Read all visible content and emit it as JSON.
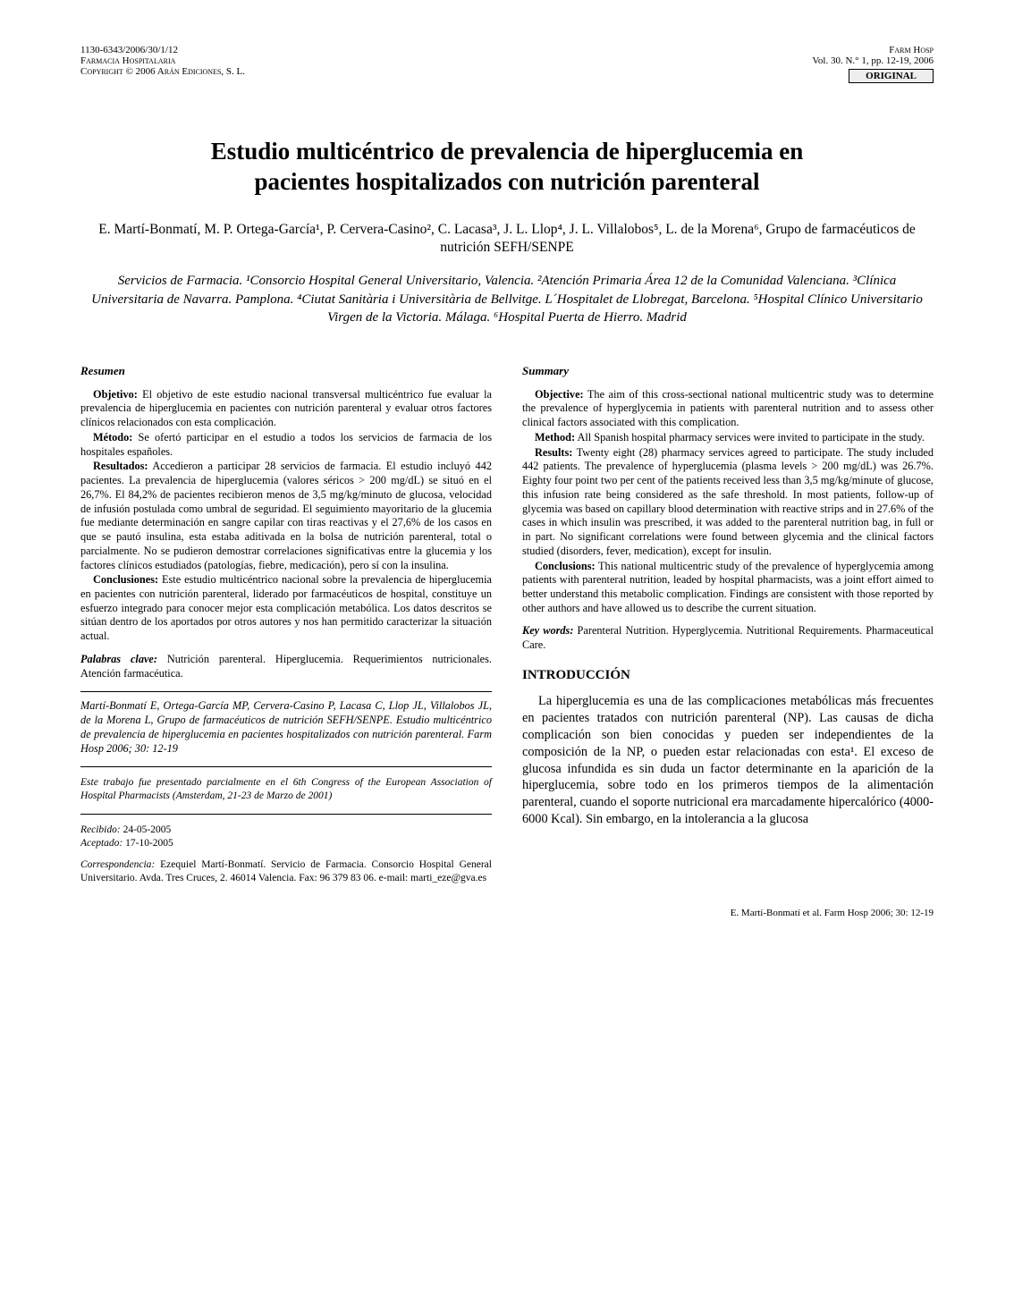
{
  "header": {
    "left_line1": "1130-6343/2006/30/1/12",
    "left_line2": "Farmacia Hospitalaria",
    "left_line3": "Copyright © 2006 Arán Ediciones, S. L.",
    "right_line1": "Farm Hosp",
    "right_line2": "Vol. 30. N.° 1, pp. 12-19, 2006",
    "badge": "ORIGINAL"
  },
  "title_line1": "Estudio multicéntrico de prevalencia de hiperglucemia en",
  "title_line2": "pacientes hospitalizados con nutrición parenteral",
  "authors": "E. Martí-Bonmatí, M. P. Ortega-García¹, P. Cervera-Casino², C. Lacasa³, J. L. Llop⁴, J. L. Villalobos⁵, L. de la Morena⁶, Grupo de farmacéuticos de nutrición SEFH/SENPE",
  "affiliations": "Servicios de Farmacia. ¹Consorcio Hospital General Universitario, Valencia. ²Atención Primaria Área 12 de la Comunidad Valenciana. ³Clínica Universitaria de Navarra. Pamplona. ⁴Ciutat Sanitària i Universitària de Bellvitge. L´Hospitalet de Llobregat, Barcelona. ⁵Hospital Clínico Universitario Virgen de la Victoria. Málaga. ⁶Hospital Puerta de Hierro. Madrid",
  "resumen": {
    "heading": "Resumen",
    "objetivo_label": "Objetivo:",
    "objetivo": " El objetivo de este estudio nacional transversal multicéntrico fue evaluar la prevalencia de hiperglucemia en pacientes con nutrición parenteral y evaluar otros factores clínicos relacionados con esta complicación.",
    "metodo_label": "Método:",
    "metodo": " Se ofertó participar en el estudio a todos los servicios de farmacia de los hospitales españoles.",
    "resultados_label": "Resultados:",
    "resultados": " Accedieron a participar 28 servicios de farmacia. El estudio incluyó 442 pacientes. La prevalencia de hiperglucemia (valores séricos > 200 mg/dL) se situó en el 26,7%. El 84,2% de pacientes recibieron menos de 3,5 mg/kg/minuto de glucosa, velocidad de infusión postulada como umbral de seguridad. El seguimiento mayoritario de la glucemia fue mediante determinación en sangre capilar con tiras reactivas y el 27,6% de los casos en que se pautó insulina, esta estaba aditivada en la bolsa de nutrición parenteral, total o parcialmente. No se pudieron demostrar correlaciones significativas entre la glucemia y los factores clínicos estudiados (patologías, fiebre, medicación), pero sí con la insulina.",
    "conclusiones_label": "Conclusiones:",
    "conclusiones": " Este estudio multicéntrico nacional sobre la prevalencia de hiperglucemia en pacientes con nutrición parenteral, liderado por farmacéuticos de hospital, constituye un esfuerzo integrado para conocer mejor esta complicación metabólica. Los datos descritos se sitúan dentro de los aportados por otros autores y nos han permitido caracterizar la situación actual.",
    "keywords_label": "Palabras clave:",
    "keywords": " Nutrición parenteral. Hiperglucemia. Requerimientos nutricionales. Atención farmacéutica."
  },
  "summary": {
    "heading": "Summary",
    "objective_label": "Objective:",
    "objective": " The aim of this cross-sectional national multicentric study was to determine the prevalence of hyperglycemia in patients with parenteral nutrition and to assess other clinical factors associated with this complication.",
    "method_label": "Method:",
    "method": " All Spanish hospital pharmacy services were invited to participate in the study.",
    "results_label": "Results:",
    "results": " Twenty eight (28) pharmacy services agreed to participate. The study included 442 patients. The prevalence of hyperglucemia (plasma levels > 200 mg/dL) was 26.7%. Eighty four point two per cent of the patients received less than 3,5 mg/kg/minute of glucose, this infusion rate being considered as the safe threshold. In most patients, follow-up of glycemia was based on capillary blood determination with reactive strips and in 27.6% of the cases in which insulin was prescribed, it was added to the parenteral nutrition bag, in full or in part. No significant correlations were found between glycemia and the clinical factors studied (disorders, fever, medication), except for insulin.",
    "conclusions_label": "Conclusions:",
    "conclusions": " This national multicentric study of the prevalence of hyperglycemia among patients with parenteral nutrition, leaded by hospital pharmacists, was a joint effort aimed to better understand this metabolic complication. Findings are consistent with those reported by other authors and have allowed us to describe the current situation.",
    "keywords_label": "Key words:",
    "keywords": " Parenteral Nutrition. Hyperglycemia. Nutritional Requirements. Pharmaceutical Care."
  },
  "citation": "Martí-Bonmatí E, Ortega-García MP, Cervera-Casino P, Lacasa C, Llop JL, Villalobos JL, de la Morena L, Grupo de farmacéuticos de nutrición SEFH/SENPE. Estudio multicéntrico de prevalencia de hiperglucemia en pacientes hospitalizados con nutrición parenteral. Farm Hosp 2006; 30: 12-19",
  "footnote": "Este trabajo fue presentado parcialmente en el 6th Congress of the European Association of Hospital Pharmacists (Amsterdam, 21-23 de Marzo de 2001)",
  "dates": {
    "recibido_label": "Recibido:",
    "recibido": " 24-05-2005",
    "aceptado_label": "Aceptado:",
    "aceptado": " 17-10-2005"
  },
  "correspondence": {
    "label": "Correspondencia:",
    "text": " Ezequiel Martí-Bonmatí. Servicio de Farmacia. Consorcio Hospital General Universitario. Avda. Tres Cruces, 2. 46014 Valencia. Fax: 96 379 83 06. e-mail: marti_eze@gva.es"
  },
  "intro": {
    "heading": "INTRODUCCIÓN",
    "body": "La hiperglucemia es una de las complicaciones metabólicas más frecuentes en pacientes tratados con nutrición parenteral (NP). Las causas de dicha complicación son bien conocidas y pueden ser independientes de la composición de la NP, o pueden estar relacionadas con esta¹. El exceso de glucosa infundida es sin duda un factor determinante en la aparición de la hiperglucemia, sobre todo en los primeros tiempos de la alimentación parenteral, cuando el soporte nutricional era marcadamente hipercalórico (4000-6000 Kcal). Sin embargo, en la intolerancia a la glucosa"
  },
  "page_footer": "E. Martí-Bonmatí et al. Farm Hosp 2006; 30: 12-19"
}
